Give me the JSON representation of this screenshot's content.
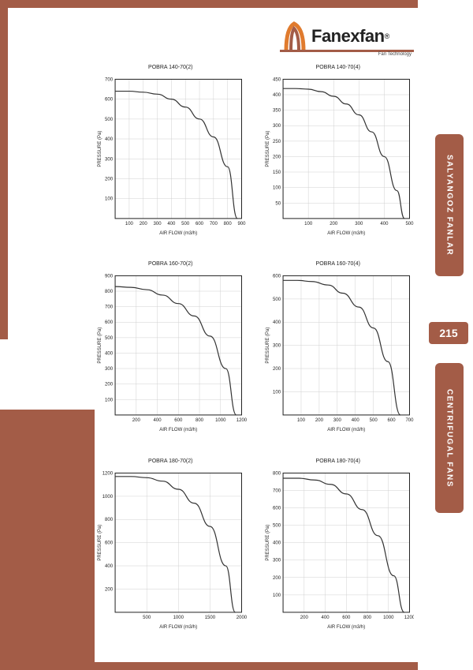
{
  "brand": {
    "name": "Fanexfan",
    "tagline": "Fan Technology",
    "reg": "®",
    "logo_primary": "#e07b2e",
    "logo_inner": "#a35c47"
  },
  "page_number": "215",
  "sidebar": {
    "tab1": "SALYANGOZ FANLAR",
    "tab2": "CENTRIFUGAL FANS"
  },
  "layout": {
    "accent_color": "#a35c47",
    "background_color": "#ffffff",
    "grid_color": "#d0d0d0",
    "curve_color": "#333333",
    "text_color": "#222222"
  },
  "axis_labels": {
    "x": "AIR FLOW (m3/h)",
    "y": "PRESSURE (Pa)"
  },
  "charts": [
    {
      "title": "POBRA 140-70(2)",
      "xlim": [
        0,
        900
      ],
      "xtick_step": 100,
      "ylim": [
        0,
        700
      ],
      "ytick_step": 100,
      "curve": [
        [
          0,
          640
        ],
        [
          100,
          640
        ],
        [
          200,
          635
        ],
        [
          300,
          625
        ],
        [
          400,
          600
        ],
        [
          500,
          560
        ],
        [
          600,
          500
        ],
        [
          700,
          410
        ],
        [
          800,
          260
        ],
        [
          870,
          0
        ]
      ]
    },
    {
      "title": "POBRA 140-70(4)",
      "xlim": [
        0,
        500
      ],
      "xtick_step": 100,
      "ylim": [
        0,
        450
      ],
      "ytick_step": 50,
      "curve": [
        [
          0,
          420
        ],
        [
          50,
          420
        ],
        [
          100,
          418
        ],
        [
          150,
          410
        ],
        [
          200,
          395
        ],
        [
          250,
          370
        ],
        [
          300,
          335
        ],
        [
          350,
          280
        ],
        [
          400,
          200
        ],
        [
          450,
          90
        ],
        [
          480,
          0
        ]
      ]
    },
    {
      "title": "POBRA 160-70(2)",
      "xlim": [
        0,
        1200
      ],
      "xtick_step": 200,
      "ylim": [
        0,
        900
      ],
      "ytick_step": 100,
      "curve": [
        [
          0,
          830
        ],
        [
          150,
          825
        ],
        [
          300,
          810
        ],
        [
          450,
          775
        ],
        [
          600,
          720
        ],
        [
          750,
          640
        ],
        [
          900,
          510
        ],
        [
          1050,
          300
        ],
        [
          1150,
          0
        ]
      ]
    },
    {
      "title": "POBRA 160-70(4)",
      "xlim": [
        0,
        700
      ],
      "xtick_step": 100,
      "ylim": [
        0,
        600
      ],
      "ytick_step": 100,
      "curve": [
        [
          0,
          580
        ],
        [
          80,
          580
        ],
        [
          160,
          575
        ],
        [
          250,
          560
        ],
        [
          330,
          525
        ],
        [
          420,
          465
        ],
        [
          500,
          375
        ],
        [
          580,
          230
        ],
        [
          650,
          0
        ]
      ]
    },
    {
      "title": "POBRA 180-70(2)",
      "xlim": [
        0,
        2000
      ],
      "xtick_step": 500,
      "ylim": [
        0,
        1200
      ],
      "ytick_step": 200,
      "curve": [
        [
          0,
          1170
        ],
        [
          250,
          1170
        ],
        [
          500,
          1160
        ],
        [
          750,
          1130
        ],
        [
          1000,
          1060
        ],
        [
          1250,
          940
        ],
        [
          1500,
          740
        ],
        [
          1750,
          400
        ],
        [
          1900,
          0
        ]
      ]
    },
    {
      "title": "POBRA 180-70(4)",
      "xlim": [
        0,
        1200
      ],
      "xtick_step": 200,
      "ylim": [
        0,
        800
      ],
      "ytick_step": 100,
      "curve": [
        [
          0,
          770
        ],
        [
          150,
          770
        ],
        [
          300,
          760
        ],
        [
          450,
          735
        ],
        [
          600,
          680
        ],
        [
          750,
          590
        ],
        [
          900,
          440
        ],
        [
          1050,
          210
        ],
        [
          1150,
          0
        ]
      ]
    }
  ]
}
